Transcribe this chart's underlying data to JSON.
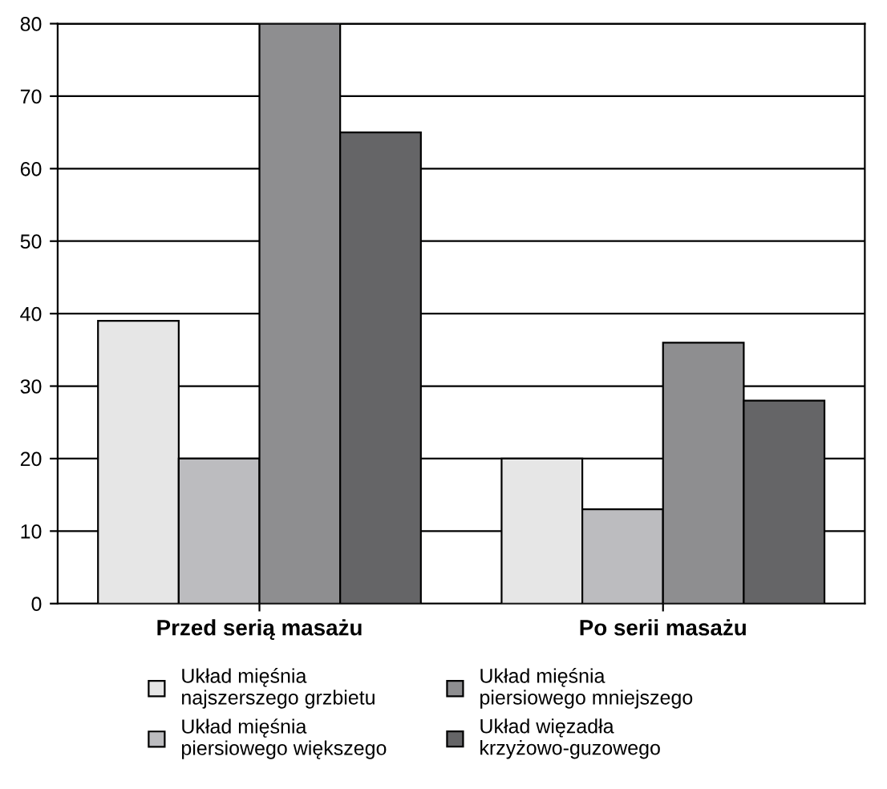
{
  "chart_data": {
    "type": "bar",
    "categories": [
      "Przed serią masażu",
      "Po serii masażu"
    ],
    "series": [
      {
        "name": "Układ mięśnia\nnajszerszego grzbietu",
        "color": "#e6e6e6",
        "values": [
          39,
          20
        ]
      },
      {
        "name": "Układ mięśnia\npiersiowego większego",
        "color": "#bcbcbf",
        "values": [
          20,
          13
        ]
      },
      {
        "name": "Układ mięśnia\npiersiowego mniejszego",
        "color": "#8e8e90",
        "values": [
          80,
          36
        ]
      },
      {
        "name": "Układ więzadła\nkrzyżowo-guzowego",
        "color": "#656567",
        "values": [
          65,
          28
        ]
      }
    ],
    "ylim": [
      0,
      80
    ],
    "yticks": [
      0,
      10,
      20,
      30,
      40,
      50,
      60,
      70,
      80
    ],
    "grid": "y",
    "legend": "bottom"
  }
}
